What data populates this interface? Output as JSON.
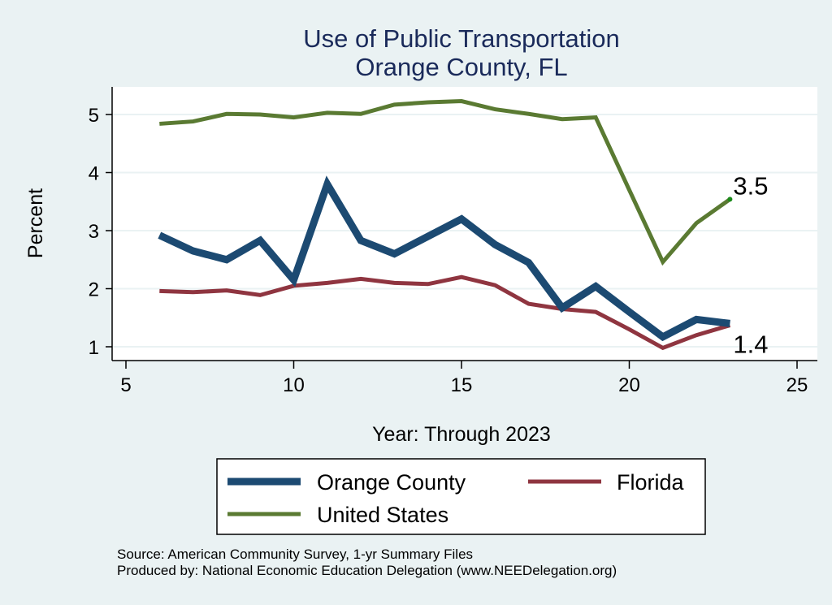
{
  "chart_data": {
    "type": "line",
    "title": "Use of Public Transportation",
    "subtitle": "Orange County, FL",
    "xlabel": "Year: Through 2023",
    "ylabel": "Percent",
    "xlim": [
      5,
      25
    ],
    "ylim": [
      1,
      5
    ],
    "xticks": [
      "5",
      "10",
      "15",
      "20",
      "25"
    ],
    "yticks": [
      "1",
      "2",
      "3",
      "4",
      "5"
    ],
    "grid": true,
    "legend_position": "bottom",
    "x": [
      6,
      7,
      8,
      9,
      10,
      11,
      12,
      13,
      14,
      15,
      16,
      17,
      18,
      19,
      20,
      21,
      22,
      23
    ],
    "series": [
      {
        "name": "Orange County",
        "color": "#1c4a72",
        "values": [
          2.92,
          2.65,
          2.5,
          2.83,
          2.15,
          3.8,
          2.83,
          2.6,
          2.9,
          3.2,
          2.76,
          2.45,
          1.67,
          2.04,
          1.6,
          1.17,
          1.47,
          1.4
        ]
      },
      {
        "name": "Florida",
        "color": "#8f3540",
        "values": [
          1.96,
          1.94,
          1.97,
          1.89,
          2.05,
          2.1,
          2.17,
          2.1,
          2.08,
          2.2,
          2.06,
          1.74,
          1.65,
          1.6,
          1.3,
          0.98,
          1.2,
          1.37
        ]
      },
      {
        "name": "United States",
        "color": "#5a7a32",
        "values": [
          4.84,
          4.88,
          5.01,
          5.0,
          4.95,
          5.03,
          5.01,
          5.17,
          5.21,
          5.23,
          5.09,
          5.01,
          4.92,
          4.95,
          3.7,
          2.46,
          3.13,
          3.54
        ]
      }
    ],
    "annotations": [
      {
        "text": "3.5",
        "series": "United States",
        "x": 23
      },
      {
        "text": "1.4",
        "series": "Orange County",
        "x": 23
      }
    ],
    "notes": [
      "Source: American Community Survey, 1-yr Summary Files",
      "Produced by: National Economic Education Delegation (www.NEEDelegation.org)"
    ]
  }
}
